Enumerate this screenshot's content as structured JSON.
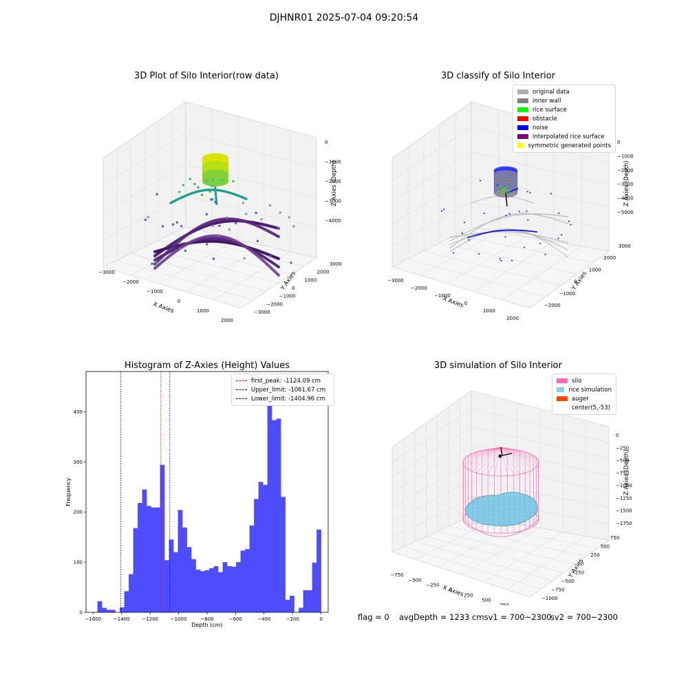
{
  "suptitle": "DJHNR01 2025-07-04 09:20:54",
  "colors": {
    "hist_bar": "#4d4dff",
    "first_peak_line": "#ff0000",
    "limit_line": "#0000cc",
    "original": "#b0b0b0",
    "inner_wall": "#808080",
    "rice_surface": "#00ff00",
    "obstacle": "#ff0000",
    "noise": "#0000ff",
    "interp": "#800080",
    "symmetric": "#ffff00",
    "silo": "#ff69b4",
    "rice_sim": "#87ceeb",
    "auger": "#ff4500"
  },
  "plot1": {
    "title": "3D Plot of Silo Interior(row data)",
    "xlabel": "X Axies",
    "ylabel": "Y Axies",
    "zlabel": "Z Axies (Depth)",
    "xticks": [
      "−3000",
      "−2000",
      "−1000",
      "0",
      "1000",
      "2000"
    ],
    "yticks": [
      "−3000",
      "−2000",
      "−1000",
      "0",
      "1000",
      "2000",
      "3000"
    ],
    "zticks": [
      "0",
      "−1000",
      "−2000",
      "−3000",
      "−4000"
    ]
  },
  "plot2": {
    "title": "3D classify of Silo Interior",
    "xlabel": "X Axies",
    "ylabel": "Y Axies",
    "zlabel": "Z Axies (Depth)",
    "xticks": [
      "−3000",
      "−2000",
      "−1000",
      "0",
      "1000",
      "2000"
    ],
    "yticks": [
      "−2000",
      "−1000",
      "0",
      "1000",
      "2000",
      "3000"
    ],
    "zticks": [
      "0",
      "−1000",
      "−2000",
      "−3000",
      "−4000",
      "−5000"
    ],
    "legend": [
      {
        "label": "original data",
        "color": "#b0b0b0"
      },
      {
        "label": "inner wall",
        "color": "#808080"
      },
      {
        "label": "rice surface",
        "color": "#00ff00"
      },
      {
        "label": "obstacle",
        "color": "#ff0000"
      },
      {
        "label": "noise",
        "color": "#0000ff"
      },
      {
        "label": "interpolated rice surface",
        "color": "#800080"
      },
      {
        "label": "symmetric generated points",
        "color": "#ffff00"
      }
    ]
  },
  "plot4": {
    "title": "3D simulation of Silo Interior",
    "xlabel": "X Axies",
    "ylabel": "Y Axies",
    "zlabel": "Z Axies (Depth)",
    "xticks": [
      "−750",
      "−500",
      "−250",
      "0",
      "250",
      "500",
      "750"
    ],
    "yticks": [
      "−1000",
      "−750",
      "−500",
      "−250",
      "0",
      "250",
      "500",
      "750"
    ],
    "zticks": [
      "0",
      "−250",
      "−500",
      "−750",
      "−1000",
      "−1250",
      "−1500",
      "−1750"
    ],
    "legend": [
      {
        "label": "silo",
        "color": "#ff69b4"
      },
      {
        "label": "rice simulation",
        "color": "#87ceeb"
      },
      {
        "label": "auger",
        "color": "#ff4500"
      },
      {
        "label": "center(5,-53)",
        "color": ""
      }
    ]
  },
  "footer": {
    "flag": "flag = 0",
    "avg": "avgDepth = 1233 cmsv1 = 700~2300",
    "sv2": "sv2 = 700~2300"
  },
  "chart_data": [
    {
      "type": "scatter",
      "title": "3D Plot of Silo Interior(row data)",
      "xlabel": "X Axies",
      "ylabel": "Y Axies",
      "zlabel": "Z Axies (Depth)",
      "xlim": [
        -3000,
        2000
      ],
      "ylim": [
        -3000,
        3000
      ],
      "zlim": [
        -4500,
        0
      ]
    },
    {
      "type": "scatter",
      "title": "3D classify of Silo Interior",
      "xlabel": "X Axies",
      "ylabel": "Y Axies",
      "zlabel": "Z Axies (Depth)",
      "xlim": [
        -3000,
        2000
      ],
      "ylim": [
        -2000,
        3000
      ],
      "zlim": [
        -5000,
        0
      ],
      "legend": [
        "original data",
        "inner wall",
        "rice surface",
        "obstacle",
        "noise",
        "interpolated rice surface",
        "symmetric generated points"
      ],
      "legend_position": "upper right"
    },
    {
      "type": "bar",
      "title": "Histogram of Z-Axies (Height) Values",
      "xlabel": "Depth (cm)",
      "ylabel": "Frequency",
      "xlim": [
        -1650,
        50
      ],
      "ylim": [
        0,
        480
      ],
      "xticks": [
        -1600,
        -1400,
        -1200,
        -1000,
        -800,
        -600,
        -400,
        -200,
        0
      ],
      "yticks": [
        0,
        100,
        200,
        300,
        400
      ],
      "bin_start": -1570,
      "bin_width": 31.4,
      "values": [
        22,
        9,
        5,
        5,
        0,
        10,
        42,
        76,
        168,
        218,
        245,
        212,
        209,
        209,
        294,
        104,
        145,
        120,
        204,
        169,
        130,
        106,
        85,
        82,
        84,
        88,
        92,
        80,
        100,
        92,
        91,
        100,
        123,
        126,
        173,
        226,
        260,
        254,
        450,
        383,
        386,
        230,
        25,
        33,
        0,
        9,
        44,
        44,
        99,
        165
      ],
      "vlines": [
        {
          "label": "first_peak: -1124.09 cm",
          "x": -1124.09,
          "color": "red"
        },
        {
          "label": "Upper_limit: -1061.67 cm",
          "x": -1061.67,
          "color": "blue"
        },
        {
          "label": "Lower_limit: -1404.96 cm",
          "x": -1404.96,
          "color": "blue"
        }
      ],
      "legend_position": "upper right"
    },
    {
      "type": "scatter",
      "title": "3D simulation of Silo Interior",
      "xlabel": "X Axies",
      "ylabel": "Y Axies",
      "zlabel": "Z Axies (Depth)",
      "xlim": [
        -900,
        900
      ],
      "ylim": [
        -1000,
        900
      ],
      "zlim": [
        -1800,
        100
      ],
      "legend": [
        "silo",
        "rice simulation",
        "auger",
        "center(5,-53)"
      ],
      "legend_position": "upper right"
    }
  ]
}
